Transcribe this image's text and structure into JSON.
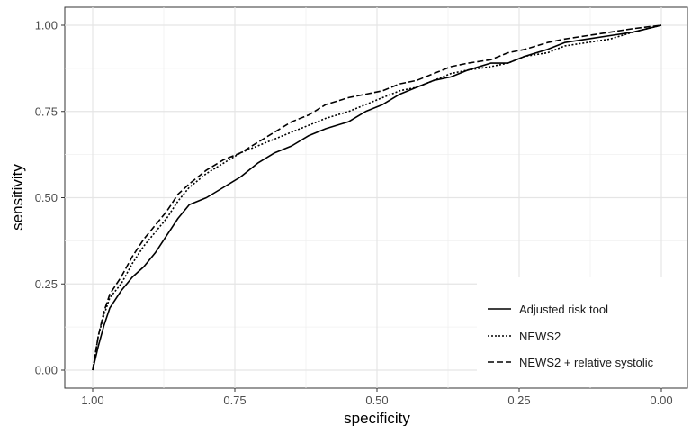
{
  "chart_data": {
    "type": "line",
    "title": "",
    "xlabel": "specificity",
    "ylabel": "sensitivity",
    "x_reversed": true,
    "xlim": [
      1.0,
      0.0
    ],
    "ylim": [
      0.0,
      1.0
    ],
    "x_ticks": [
      "1.00",
      "0.75",
      "0.50",
      "0.25",
      "0.00"
    ],
    "y_ticks": [
      "0.00",
      "0.25",
      "0.50",
      "0.75",
      "1.00"
    ],
    "grid": true,
    "legend_position": "bottom-right",
    "series": [
      {
        "name": "Adjusted risk tool",
        "line_style": "solid",
        "points": [
          [
            1.0,
            0.0
          ],
          [
            0.99,
            0.07
          ],
          [
            0.98,
            0.13
          ],
          [
            0.97,
            0.18
          ],
          [
            0.95,
            0.23
          ],
          [
            0.93,
            0.27
          ],
          [
            0.91,
            0.3
          ],
          [
            0.89,
            0.34
          ],
          [
            0.87,
            0.39
          ],
          [
            0.85,
            0.44
          ],
          [
            0.83,
            0.48
          ],
          [
            0.8,
            0.5
          ],
          [
            0.77,
            0.53
          ],
          [
            0.74,
            0.56
          ],
          [
            0.71,
            0.6
          ],
          [
            0.68,
            0.63
          ],
          [
            0.65,
            0.65
          ],
          [
            0.62,
            0.68
          ],
          [
            0.59,
            0.7
          ],
          [
            0.55,
            0.72
          ],
          [
            0.52,
            0.75
          ],
          [
            0.49,
            0.77
          ],
          [
            0.46,
            0.8
          ],
          [
            0.43,
            0.82
          ],
          [
            0.4,
            0.84
          ],
          [
            0.37,
            0.85
          ],
          [
            0.34,
            0.87
          ],
          [
            0.3,
            0.89
          ],
          [
            0.27,
            0.89
          ],
          [
            0.24,
            0.91
          ],
          [
            0.2,
            0.93
          ],
          [
            0.17,
            0.95
          ],
          [
            0.13,
            0.96
          ],
          [
            0.09,
            0.97
          ],
          [
            0.05,
            0.98
          ],
          [
            0.0,
            1.0
          ]
        ]
      },
      {
        "name": "NEWS2",
        "line_style": "dotted",
        "points": [
          [
            1.0,
            0.0
          ],
          [
            0.99,
            0.1
          ],
          [
            0.98,
            0.16
          ],
          [
            0.97,
            0.21
          ],
          [
            0.95,
            0.25
          ],
          [
            0.93,
            0.31
          ],
          [
            0.91,
            0.36
          ],
          [
            0.89,
            0.4
          ],
          [
            0.87,
            0.44
          ],
          [
            0.85,
            0.49
          ],
          [
            0.83,
            0.53
          ],
          [
            0.8,
            0.57
          ],
          [
            0.77,
            0.6
          ],
          [
            0.74,
            0.63
          ],
          [
            0.71,
            0.65
          ],
          [
            0.68,
            0.67
          ],
          [
            0.65,
            0.69
          ],
          [
            0.62,
            0.71
          ],
          [
            0.59,
            0.73
          ],
          [
            0.55,
            0.75
          ],
          [
            0.52,
            0.77
          ],
          [
            0.49,
            0.79
          ],
          [
            0.46,
            0.81
          ],
          [
            0.43,
            0.82
          ],
          [
            0.4,
            0.84
          ],
          [
            0.37,
            0.86
          ],
          [
            0.34,
            0.87
          ],
          [
            0.3,
            0.88
          ],
          [
            0.27,
            0.89
          ],
          [
            0.24,
            0.91
          ],
          [
            0.2,
            0.92
          ],
          [
            0.17,
            0.94
          ],
          [
            0.13,
            0.95
          ],
          [
            0.09,
            0.96
          ],
          [
            0.05,
            0.98
          ],
          [
            0.0,
            1.0
          ]
        ]
      },
      {
        "name": "NEWS2 + relative systolic",
        "line_style": "dashed",
        "points": [
          [
            1.0,
            0.0
          ],
          [
            0.99,
            0.1
          ],
          [
            0.98,
            0.17
          ],
          [
            0.97,
            0.22
          ],
          [
            0.95,
            0.27
          ],
          [
            0.93,
            0.33
          ],
          [
            0.91,
            0.38
          ],
          [
            0.89,
            0.42
          ],
          [
            0.87,
            0.46
          ],
          [
            0.85,
            0.51
          ],
          [
            0.83,
            0.54
          ],
          [
            0.8,
            0.58
          ],
          [
            0.77,
            0.61
          ],
          [
            0.74,
            0.63
          ],
          [
            0.71,
            0.66
          ],
          [
            0.68,
            0.69
          ],
          [
            0.65,
            0.72
          ],
          [
            0.62,
            0.74
          ],
          [
            0.59,
            0.77
          ],
          [
            0.55,
            0.79
          ],
          [
            0.52,
            0.8
          ],
          [
            0.49,
            0.81
          ],
          [
            0.46,
            0.83
          ],
          [
            0.43,
            0.84
          ],
          [
            0.4,
            0.86
          ],
          [
            0.37,
            0.88
          ],
          [
            0.34,
            0.89
          ],
          [
            0.3,
            0.9
          ],
          [
            0.27,
            0.92
          ],
          [
            0.24,
            0.93
          ],
          [
            0.2,
            0.95
          ],
          [
            0.17,
            0.96
          ],
          [
            0.13,
            0.97
          ],
          [
            0.09,
            0.98
          ],
          [
            0.05,
            0.99
          ],
          [
            0.0,
            1.0
          ]
        ]
      }
    ]
  }
}
